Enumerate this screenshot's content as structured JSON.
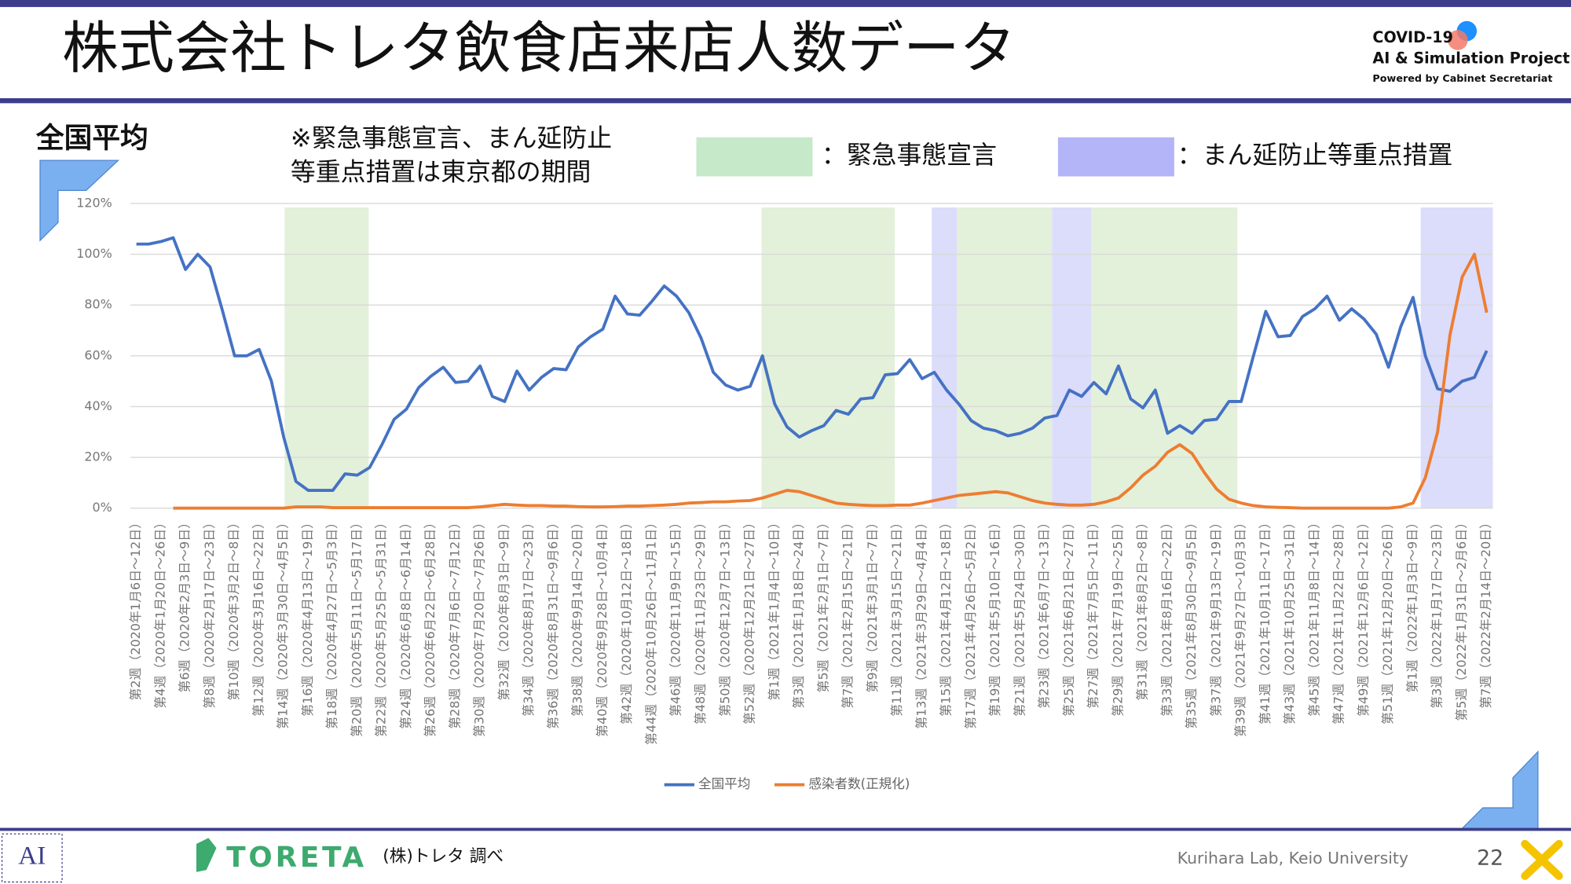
{
  "header": {
    "title": "株式会社トレタ飲食店来店人数データ",
    "logo": [
      "COVID-19",
      "AI & Simulation Project",
      "Powered by Cabinet Secretariat"
    ]
  },
  "chart_data": {
    "type": "line",
    "title": "全国平均",
    "note": [
      "※緊急事態宣言、まん延防止",
      "等重点措置は東京都の期間"
    ],
    "band_legend": [
      {
        "label": "：緊急事態宣言",
        "color": "#c6e9c9"
      },
      {
        "label": "：まん延防止等重点措置",
        "color": "#b4b4f8"
      }
    ],
    "categories": [
      "第2週（2020年1月6日～12日）",
      null,
      "第4週（2020年1月20日～26日）",
      null,
      "第6週（2020年2月3日～9日）",
      null,
      "第8週（2020年2月17日～23日）",
      null,
      "第10週（2020年3月2日～8日）",
      null,
      "第12週（2020年3月16日～22日）",
      null,
      "第14週（2020年3月30日～4月5日）",
      null,
      "第16週（2020年4月13日～19日）",
      null,
      "第18週（2020年4月27日～5月3日）",
      null,
      "第20週（2020年5月11日～5月17日）",
      null,
      "第22週（2020年5月25日～5月31日）",
      null,
      "第24週（2020年6月8日～6月14日）",
      null,
      "第26週（2020年6月22日～6月28日）",
      null,
      "第28週（2020年7月6日～7月12日）",
      null,
      "第30週（2020年7月20日～7月26日）",
      null,
      "第32週（2020年8月3日～9日）",
      null,
      "第34週（2020年8月17日～23日）",
      null,
      "第36週（2020年8月31日～9月6日）",
      null,
      "第38週（2020年9月14日～20日）",
      null,
      "第40週（2020年9月28日～10月4日）",
      null,
      "第42週（2020年10月12日～18日）",
      null,
      "第44週（2020年10月26日～11月1日）",
      null,
      "第46週（2020年11月9日～15日）",
      null,
      "第48週（2020年11月23日～29日）",
      null,
      "第50週（2020年12月7日～13日）",
      null,
      "第52週（2020年12月21日～27日）",
      null,
      "第1週（2021年1月4日～10日）",
      null,
      "第3週（2021年1月18日～24日）",
      null,
      "第5週（2021年2月1日～7日）",
      null,
      "第7週（2021年2月15日～21日）",
      null,
      "第9週（2021年3月1日～7日）",
      null,
      "第11週（2021年3月15日～21日）",
      null,
      "第13週（2021年3月29日～4月4日）",
      null,
      "第15週（2021年4月12日～18日）",
      null,
      "第17週（2021年4月26日～5月2日）",
      null,
      "第19週（2021年5月10日～16日）",
      null,
      "第21週（2021年5月24日～30日）",
      null,
      "第23週（2021年6月7日～13日）",
      null,
      "第25週（2021年6月21日～27日）",
      null,
      "第27週（2021年7月5日～11日）",
      null,
      "第29週（2021年7月19日～25日）",
      null,
      "第31週（2021年8月2日～8日）",
      null,
      "第33週（2021年8月16日～22日）",
      null,
      "第35週（2021年8月30日～9月5日）",
      null,
      "第37週（2021年9月13日～19日）",
      null,
      "第39週（2021年9月27日～10月3日）",
      null,
      "第41週（2021年10月11日～17日）",
      null,
      "第43週（2021年10月25日～31日）",
      null,
      "第45週（2021年11月8日～14日）",
      null,
      "第47週（2021年11月22日～28日）",
      null,
      "第49週（2021年12月6日～12日）",
      null,
      "第51週（2021年12月20日～26日）",
      null,
      "第1週（2022年1月3日～9日）",
      null,
      "第3週（2022年1月17日～23日）",
      null,
      "第5週（2022年1月31日～2月6日）",
      null,
      "第7週（2022年2月14日～20日）"
    ],
    "series": [
      {
        "name": "全国平均",
        "color": "#4472c4",
        "values": [
          104,
          104,
          105,
          106.5,
          94,
          100,
          95,
          78,
          60,
          60,
          62.5,
          50,
          28,
          10.5,
          7,
          7,
          7,
          13.5,
          13,
          16,
          25,
          35,
          39,
          47.5,
          52,
          55.5,
          49.5,
          50,
          56,
          44,
          42,
          54,
          46.5,
          51.5,
          55,
          54.5,
          63.5,
          67.5,
          70.5,
          83.5,
          76.5,
          76,
          81.5,
          87.5,
          83.5,
          77,
          67,
          53.5,
          48.5,
          46.5,
          48,
          60,
          41,
          32,
          28,
          30.5,
          32.5,
          38.5,
          37,
          43,
          43.5,
          52.5,
          53,
          58.5,
          51,
          53.5,
          46.5,
          41,
          34.5,
          31.5,
          30.5,
          28.5,
          29.5,
          31.5,
          35.5,
          36.5,
          46.5,
          44,
          49.5,
          45,
          56,
          43,
          39.5,
          46.5,
          29.5,
          32.5,
          29.5,
          34.5,
          35,
          42,
          42,
          60,
          77.5,
          67.5,
          68,
          75.5,
          78.5,
          83.5,
          74,
          78.5,
          74.5,
          68.5,
          55.5,
          71.5,
          83,
          60,
          47,
          46,
          50,
          51.5,
          62
        ]
      },
      {
        "name": "感染者数(正規化)",
        "color": "#ed7d31",
        "values": [
          null,
          null,
          null,
          0,
          0,
          0,
          0,
          0,
          0,
          0,
          0,
          0,
          0,
          0.5,
          0.5,
          0.5,
          0.2,
          0.2,
          0.2,
          0.2,
          0.2,
          0.2,
          0.2,
          0.2,
          0.2,
          0.2,
          0.2,
          0.2,
          0.5,
          1,
          1.5,
          1.2,
          1,
          1,
          0.8,
          0.8,
          0.6,
          0.5,
          0.5,
          0.6,
          0.8,
          0.8,
          1,
          1.2,
          1.5,
          2,
          2.2,
          2.5,
          2.5,
          2.8,
          3,
          4,
          5.5,
          7,
          6.5,
          5,
          3.5,
          2,
          1.5,
          1.2,
          1,
          1,
          1.2,
          1.2,
          2,
          3,
          4,
          5,
          5.5,
          6,
          6.5,
          6,
          4.5,
          3,
          2,
          1.5,
          1.2,
          1.2,
          1.5,
          2.5,
          4,
          8,
          13,
          16.5,
          22,
          25,
          21.5,
          14,
          7.5,
          3.5,
          2,
          1,
          0.5,
          0.3,
          0.2,
          0,
          0,
          0,
          0,
          0,
          0,
          0,
          0,
          0.5,
          2,
          12,
          30,
          68,
          91,
          100,
          77
        ]
      }
    ],
    "ylim": [
      0,
      120
    ],
    "yticks": [
      {
        "value": 0,
        "label": "0%"
      },
      {
        "value": 20,
        "label": "20%"
      },
      {
        "value": 40,
        "label": "40%"
      },
      {
        "value": 60,
        "label": "60%"
      },
      {
        "value": 80,
        "label": "80%"
      },
      {
        "value": 100,
        "label": "100%"
      },
      {
        "value": 120,
        "label": "120%"
      }
    ],
    "grid": true
  },
  "footer": {
    "brand": "TORETA",
    "source": "(株)トレタ 調べ",
    "credit": "Kurihara Lab, Keio University",
    "page": "22"
  }
}
